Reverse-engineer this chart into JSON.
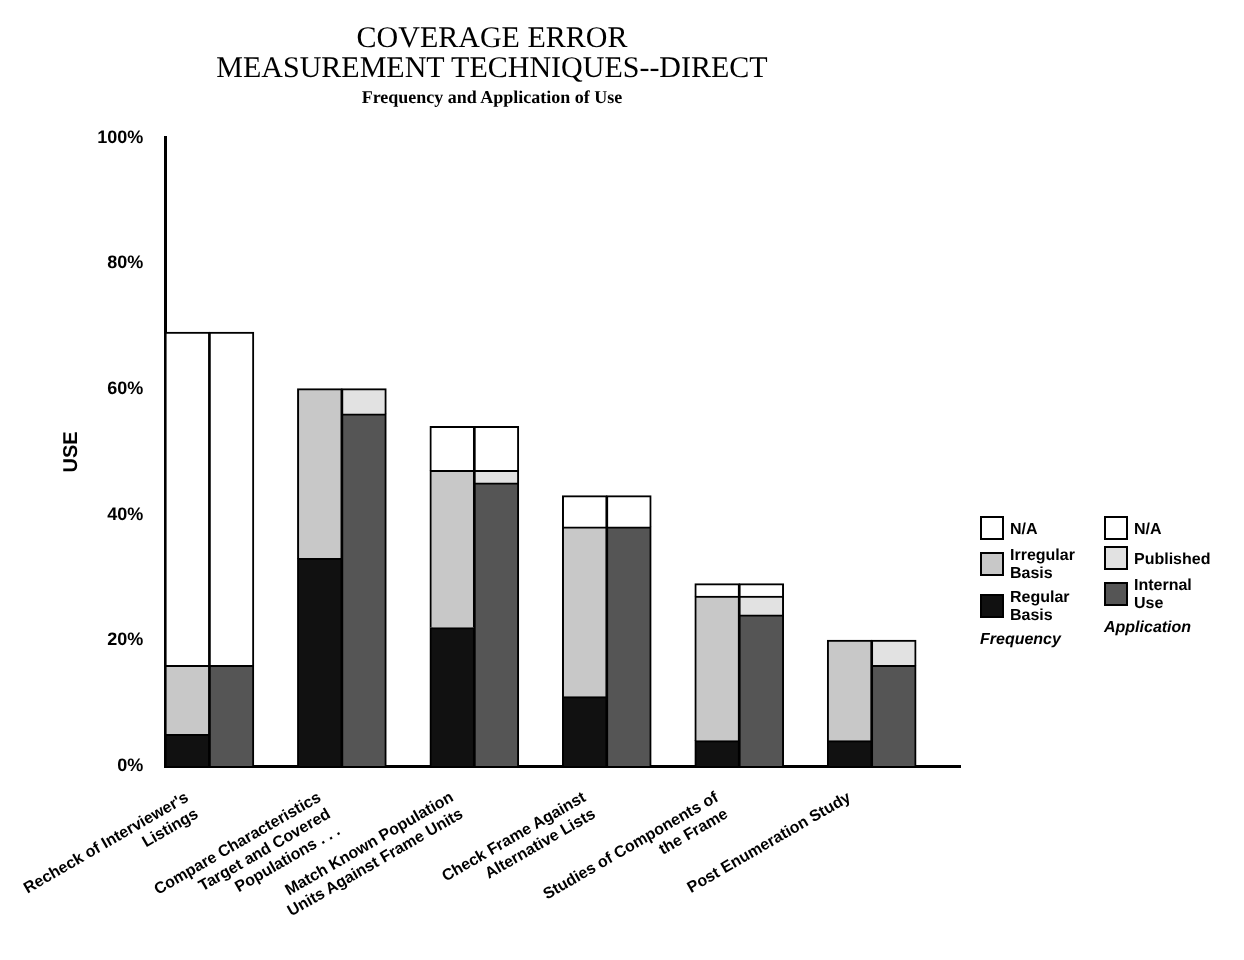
{
  "chart_data": {
    "type": "bar",
    "title": "COVERAGE ERROR\nMEASUREMENT TECHNIQUES--DIRECT",
    "subtitle": "Frequency and Application of Use",
    "ylabel": "USE",
    "stacked": true,
    "legend": "right",
    "grid": false,
    "annotations": [
      "Frequency",
      "Application"
    ],
    "categories": [
      "Recheck of Interviewer's Listings",
      null,
      null,
      "Compare Characteristics Target and Covered Populations . . .",
      null,
      null,
      "Match Known Population Units Against Frame Units",
      null,
      null,
      "Check Frame Against Alternative Lists",
      null,
      null,
      "Studies of Components of the Frame",
      null,
      null,
      "Post Enumeration Study",
      null,
      null
    ],
    "ylim": [
      0,
      100
    ],
    "yticks": [
      {
        "value": 0,
        "label": "0%"
      },
      {
        "value": 20,
        "label": "20%"
      },
      {
        "value": 40,
        "label": "40%"
      },
      {
        "value": 60,
        "label": "60%"
      },
      {
        "value": 80,
        "label": "80%"
      },
      {
        "value": 100,
        "label": "100%"
      }
    ],
    "series": [
      {
        "name": "Regular Basis",
        "color": "#111111",
        "values": [
          5,
          null,
          null,
          33,
          null,
          null,
          22,
          null,
          null,
          11,
          null,
          null,
          4,
          null,
          null,
          4,
          null,
          null
        ]
      },
      {
        "name": "Irregular Basis",
        "color": "#c8c8c8",
        "values": [
          11,
          null,
          null,
          27,
          null,
          null,
          25,
          null,
          null,
          27,
          null,
          null,
          23,
          null,
          null,
          16,
          null,
          null
        ]
      },
      {
        "name": "N/A",
        "color": "#ffffff",
        "values": [
          53,
          null,
          null,
          0,
          null,
          null,
          7,
          null,
          null,
          5,
          null,
          null,
          2,
          null,
          null,
          0,
          null,
          null
        ]
      },
      {
        "name": "Internal Use",
        "color": "#555555",
        "values": [
          null,
          16,
          null,
          null,
          56,
          null,
          null,
          45,
          null,
          null,
          38,
          null,
          null,
          24,
          null,
          null,
          16,
          null
        ]
      },
      {
        "name": "Published",
        "color": "#e2e2e2",
        "values": [
          null,
          0,
          null,
          null,
          4,
          null,
          null,
          2,
          null,
          null,
          0,
          null,
          null,
          3,
          null,
          null,
          4,
          null
        ]
      },
      {
        "name": "N/A",
        "color": "#ffffff",
        "values": [
          null,
          53,
          null,
          null,
          0,
          null,
          null,
          7,
          null,
          null,
          5,
          null,
          null,
          2,
          null,
          null,
          0,
          null
        ]
      }
    ]
  }
}
